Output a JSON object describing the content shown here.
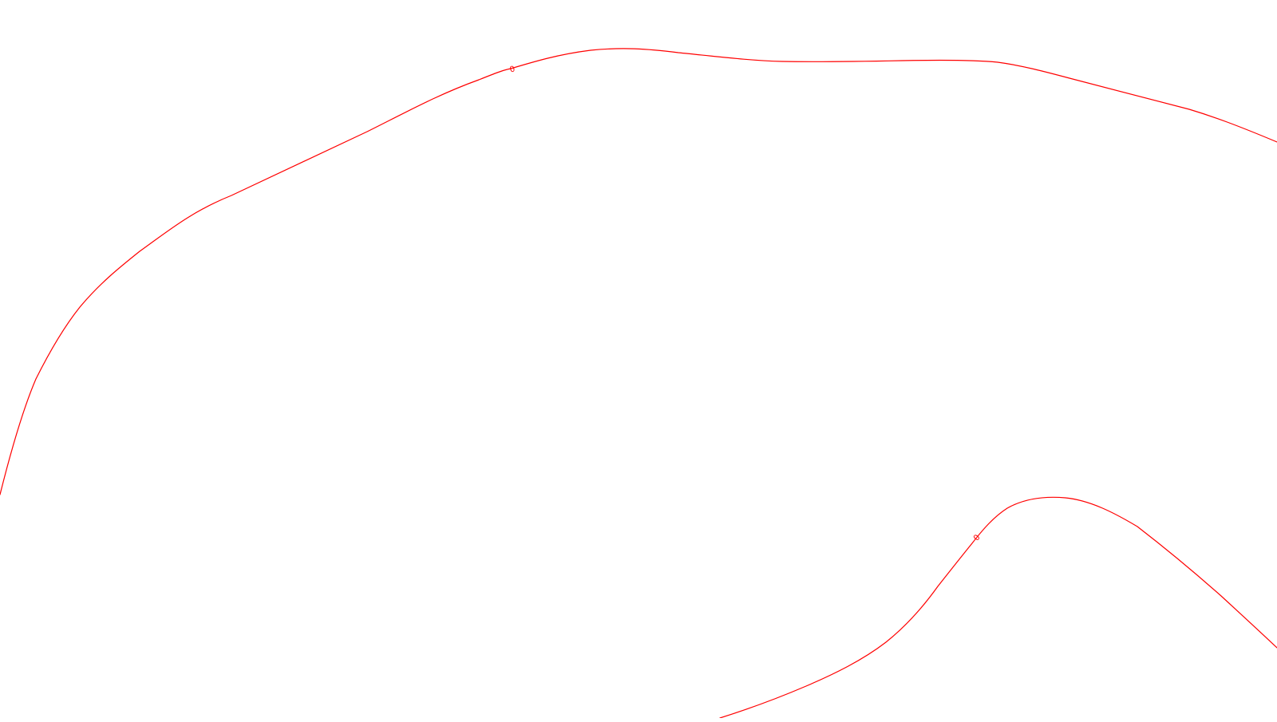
{
  "colors": {
    "background": "#ffffff",
    "contour": "#ff0000"
  },
  "contours": [
    {
      "label": "0"
    },
    {
      "label": "0"
    }
  ]
}
